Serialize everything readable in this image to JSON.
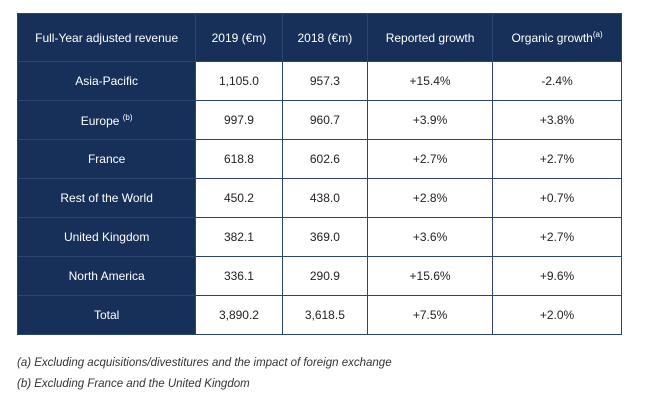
{
  "headers": [
    "Full-Year adjusted revenue",
    "2019 (€m)",
    "2018 (€m)",
    "Reported growth",
    "Organic growth"
  ],
  "header_sup": "(a)",
  "rows": [
    {
      "region": "Asia-Pacific",
      "sup": "",
      "y2019": "1,105.0",
      "y2018": "957.3",
      "reported": "+15.4%",
      "organic": "-2.4%"
    },
    {
      "region": "Europe",
      "sup": "(b)",
      "y2019": "997.9",
      "y2018": "960.7",
      "reported": "+3.9%",
      "organic": "+3.8%"
    },
    {
      "region": "France",
      "sup": "",
      "y2019": "618.8",
      "y2018": "602.6",
      "reported": "+2.7%",
      "organic": "+2.7%"
    },
    {
      "region": "Rest of the World",
      "sup": "",
      "y2019": "450.2",
      "y2018": "438.0",
      "reported": "+2.8%",
      "organic": "+0.7%"
    },
    {
      "region": "United Kingdom",
      "sup": "",
      "y2019": "382.1",
      "y2018": "369.0",
      "reported": "+3.6%",
      "organic": "+2.7%"
    },
    {
      "region": "North America",
      "sup": "",
      "y2019": "336.1",
      "y2018": "290.9",
      "reported": "+15.6%",
      "organic": "+9.6%"
    },
    {
      "region": "Total",
      "sup": "",
      "y2019": "3,890.2",
      "y2018": "3,618.5",
      "reported": "+7.5%",
      "organic": "+2.0%"
    }
  ],
  "footnotes": [
    "(a) Excluding acquisitions/divestitures and the impact of foreign exchange",
    "(b) Excluding France and the United Kingdom"
  ]
}
